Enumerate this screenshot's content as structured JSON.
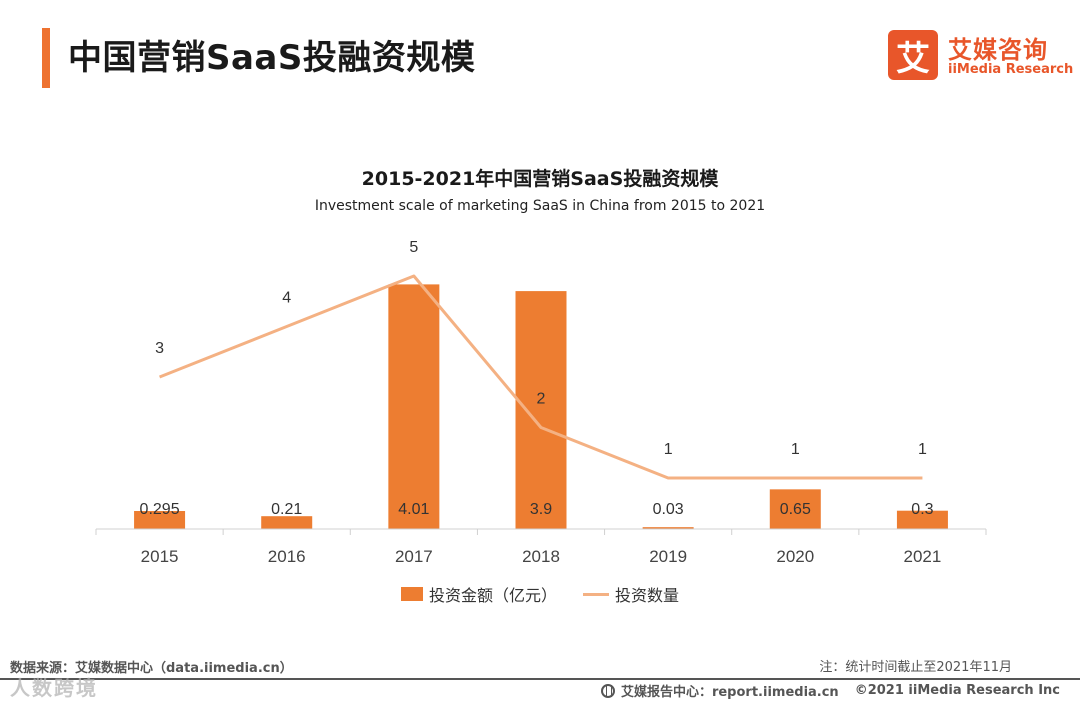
{
  "header": {
    "title": "中国营销SaaS投融资规模",
    "logo_mark": "艾",
    "logo_cn": "艾媒咨询",
    "logo_en": "iiMedia Research"
  },
  "colors": {
    "bar": "#ed7d31",
    "line": "#f4b183",
    "accent": "#ee7230"
  },
  "chart_data": {
    "type": "bar",
    "title": "2015-2021年中国营销SaaS投融资规模",
    "subtitle": "Investment scale of marketing SaaS in China from 2015 to 2021",
    "categories": [
      "2015",
      "2016",
      "2017",
      "2018",
      "2019",
      "2020",
      "2021"
    ],
    "series": [
      {
        "name": "投资金额（亿元）",
        "type": "bar",
        "values": [
          0.295,
          0.21,
          4.01,
          3.9,
          0.03,
          0.65,
          0.3
        ],
        "labels": [
          "0.295",
          "0.21",
          "4.01",
          "3.9",
          "0.03",
          "0.65",
          "0.3"
        ]
      },
      {
        "name": "投资数量",
        "type": "line",
        "values": [
          3,
          4,
          5,
          2,
          1,
          1,
          1
        ],
        "labels": [
          "3",
          "4",
          "5",
          "2",
          "1",
          "1",
          "1"
        ]
      }
    ],
    "legend_position": "bottom"
  },
  "footer": {
    "source": "数据来源：艾媒数据中心（data.iimedia.cn）",
    "note": "注：统计时间截止至2021年11月",
    "report": "艾媒报告中心：report.iimedia.cn",
    "copyright": "©2021 iiMedia Research Inc",
    "watermark": "人数跨境"
  }
}
